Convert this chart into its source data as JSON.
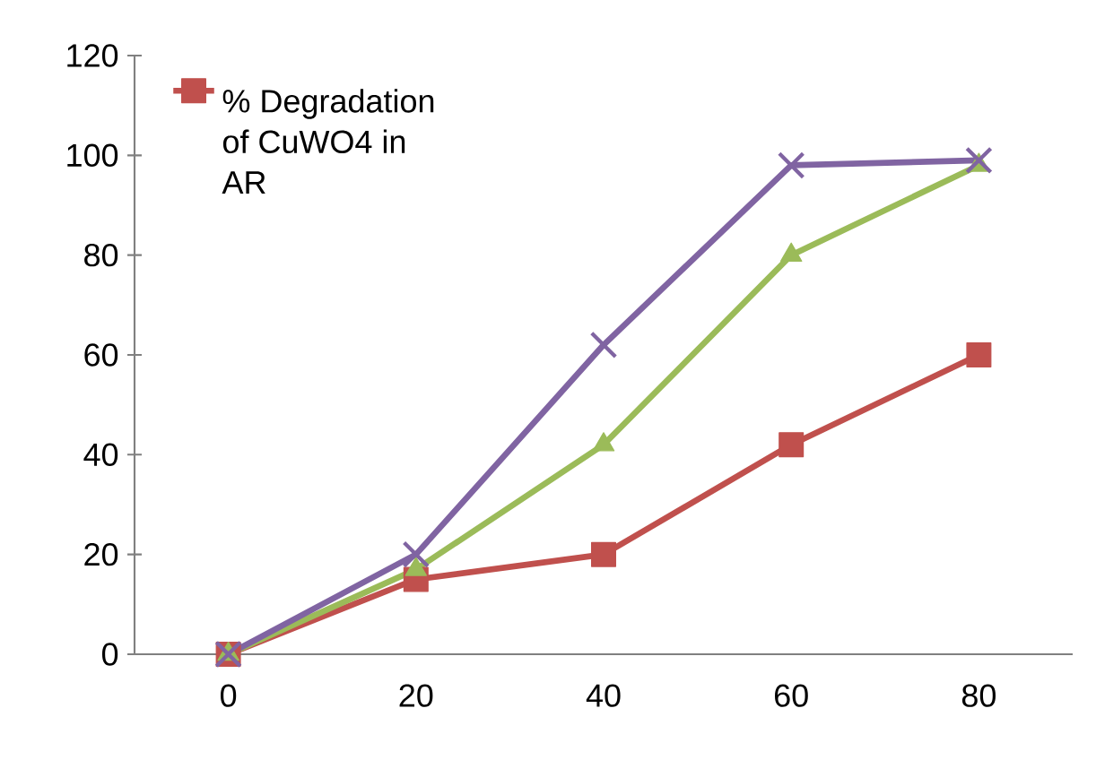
{
  "chart_data": {
    "type": "line",
    "categories": [
      "0",
      "20",
      "40",
      "60",
      "80"
    ],
    "series": [
      {
        "name": "% Degradation of CuWO4 in AR",
        "color": "#c0504d",
        "marker": "square",
        "values": [
          0,
          15,
          20,
          42,
          60
        ]
      },
      {
        "color": "#9bbb59",
        "marker": "triangle",
        "values": [
          0,
          17,
          42,
          80,
          98
        ]
      },
      {
        "color": "#8064a2",
        "marker": "cross",
        "values": [
          0,
          20,
          62,
          98,
          99
        ]
      }
    ],
    "ylim": [
      0,
      120
    ],
    "yticks": [
      0,
      20,
      40,
      60,
      80,
      100,
      120
    ],
    "legend": "top left",
    "grid": false,
    "line_style": "solid"
  }
}
